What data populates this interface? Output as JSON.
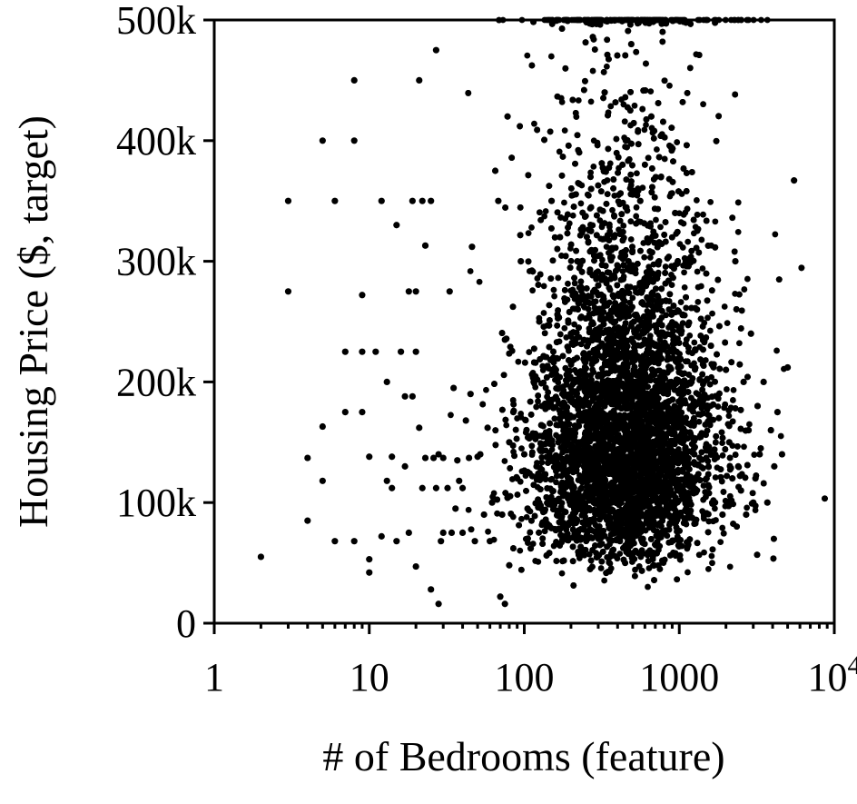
{
  "chart_data": {
    "type": "scatter",
    "title": "",
    "xlabel": "# of Bedrooms (feature)",
    "ylabel": "Housing Price ($, target)",
    "x_scale": "log",
    "xlim": [
      1,
      10000
    ],
    "ylim": [
      0,
      500000
    ],
    "grid": false,
    "legend": "none",
    "marker_color": "#000000",
    "x_ticks": [
      {
        "value": 1,
        "label": "1"
      },
      {
        "value": 10,
        "label": "10"
      },
      {
        "value": 100,
        "label": "100"
      },
      {
        "value": 1000,
        "label": "1000"
      },
      {
        "value": 10000,
        "label": "10",
        "sup": "4"
      }
    ],
    "y_ticks": [
      {
        "value": 0,
        "label": "0"
      },
      {
        "value": 100000,
        "label": "100k"
      },
      {
        "value": 200000,
        "label": "200k"
      },
      {
        "value": 300000,
        "label": "300k"
      },
      {
        "value": 400000,
        "label": "400k"
      },
      {
        "value": 500000,
        "label": "500k"
      }
    ],
    "series": [
      {
        "x": [
          2,
          3,
          3,
          4,
          4,
          5,
          5,
          5,
          6,
          6,
          7,
          7,
          8,
          8,
          8,
          9,
          9,
          9,
          10,
          10,
          10,
          11,
          12,
          12,
          13,
          13,
          14,
          14,
          15,
          15,
          16,
          17,
          17,
          18,
          18,
          19,
          19,
          20,
          20,
          20,
          21,
          21,
          22,
          22,
          23,
          23,
          25,
          25,
          26,
          27,
          27,
          28,
          28,
          29,
          30,
          30,
          32,
          33,
          34,
          35,
          36,
          37,
          38,
          40,
          40,
          42,
          44,
          45,
          46,
          48,
          50,
          52,
          55,
          58,
          60,
          62,
          65,
          68,
          70,
          72,
          75,
          75,
          78,
          80,
          80,
          85,
          90,
          95,
          100,
          105,
          110,
          115,
          120,
          125,
          130,
          140,
          150,
          160,
          170,
          180,
          190,
          200,
          210,
          220,
          230,
          240,
          250,
          260,
          270,
          280,
          290,
          300,
          310,
          320,
          330,
          340,
          350,
          360,
          370,
          380,
          390,
          400,
          410,
          420,
          430,
          440,
          450,
          460,
          470,
          480,
          490,
          500,
          510,
          520,
          540,
          560,
          580,
          600,
          620,
          640,
          660,
          680,
          700,
          720,
          740,
          760,
          780,
          800,
          830,
          860,
          900,
          940,
          980,
          1000,
          1050,
          1100,
          1150,
          1200,
          1250,
          1300,
          1400,
          1500,
          1600,
          1700,
          1800,
          1900,
          2000,
          2100,
          2200,
          2300,
          2400,
          2500,
          2600,
          2700,
          2800,
          2900,
          3000,
          3100,
          3200,
          3300,
          3500,
          3700,
          3900,
          4100,
          4300,
          4600,
          5000,
          5500
        ],
        "y": [
          55000,
          350000,
          275000,
          85000,
          137000,
          400000,
          163000,
          118000,
          350000,
          68000,
          225000,
          175000,
          400000,
          450000,
          68000,
          272000,
          175000,
          225000,
          42000,
          138000,
          53000,
          225000,
          350000,
          72000,
          200000,
          118000,
          112000,
          138000,
          330000,
          68000,
          225000,
          188000,
          130000,
          275000,
          75000,
          350000,
          188000,
          275000,
          225000,
          47000,
          450000,
          162000,
          350000,
          112000,
          313000,
          137000,
          350000,
          28000,
          137000,
          112000,
          475000,
          140000,
          16000,
          68000,
          137000,
          75000,
          112000,
          275000,
          75000,
          195000,
          95000,
          135000,
          118000,
          112000,
          75000,
          168000,
          137000,
          190000,
          312000,
          68000,
          138000,
          140000,
          90000,
          162000,
          68000,
          100000,
          375000,
          350000,
          22000,
          90000,
          235000,
          16000,
          420000,
          48000,
          150000,
          175000,
          120000,
          300000,
          140000,
          95000,
          62000,
          200000,
          130000,
          250000,
          180000,
          80000,
          350000,
          210000,
          320000,
          130000,
          160000,
          240000,
          95000,
          300000,
          140000,
          180000,
          70000,
          220000,
          360000,
          120000,
          160000,
          280000,
          100000,
          190000,
          440000,
          130000,
          240000,
          80000,
          170000,
          320000,
          110000,
          260000,
          200000,
          150000,
          380000,
          90000,
          230000,
          130000,
          300000,
          170000,
          480000,
          110000,
          250000,
          200000,
          140000,
          350000,
          90000,
          180000,
          270000,
          120000,
          420000,
          160000,
          230000,
          100000,
          300000,
          150000,
          200000,
          90000,
          180000,
          260000,
          130000,
          340000,
          110000,
          220000,
          160000,
          300000,
          90000,
          200000,
          140000,
          260000,
          180000,
          120000,
          230000,
          100000,
          170000,
          90000,
          210000,
          150000,
          120000,
          300000,
          130000,
          110000,
          200000,
          90000,
          160000,
          240000,
          100000,
          120000,
          180000,
          140000,
          200000,
          100000,
          160000,
          130000,
          175000,
          140000,
          212000,
          367000
        ]
      }
    ]
  }
}
